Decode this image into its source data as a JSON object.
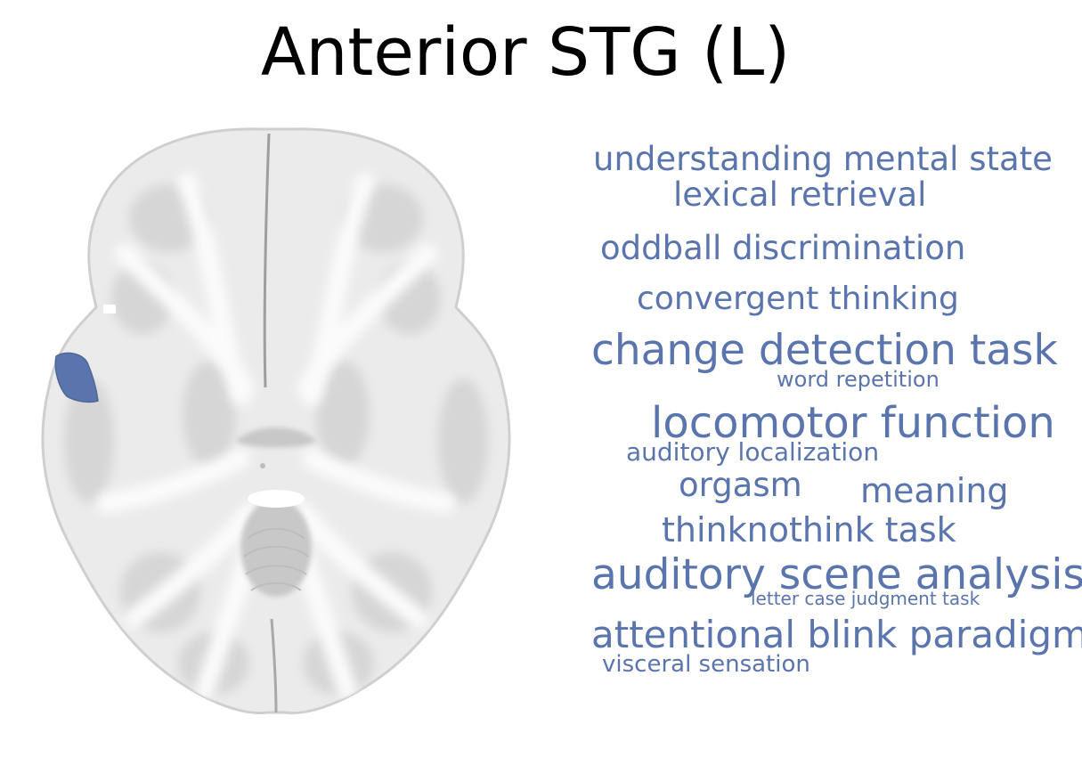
{
  "title": "Anterior STG (L)",
  "accent_color": "#5a74ad",
  "terms": [
    {
      "text": "understanding mental state",
      "size": "large"
    },
    {
      "text": "lexical retrieval",
      "size": "large"
    },
    {
      "text": "oddball discrimination",
      "size": "large"
    },
    {
      "text": "convergent thinking",
      "size": "large"
    },
    {
      "text": "change detection task",
      "size": "x-large"
    },
    {
      "text": "word repetition",
      "size": "small"
    },
    {
      "text": "locomotor function",
      "size": "x-large"
    },
    {
      "text": "auditory localization",
      "size": "small"
    },
    {
      "text": "orgasm",
      "size": "large"
    },
    {
      "text": "meaning",
      "size": "large"
    },
    {
      "text": "thinknothink task",
      "size": "large"
    },
    {
      "text": "auditory scene analysis",
      "size": "x-large"
    },
    {
      "text": "letter case judgment task",
      "size": "x-small"
    },
    {
      "text": "attentional blink paradigm",
      "size": "x-large"
    },
    {
      "text": "visceral sensation",
      "size": "small"
    }
  ]
}
